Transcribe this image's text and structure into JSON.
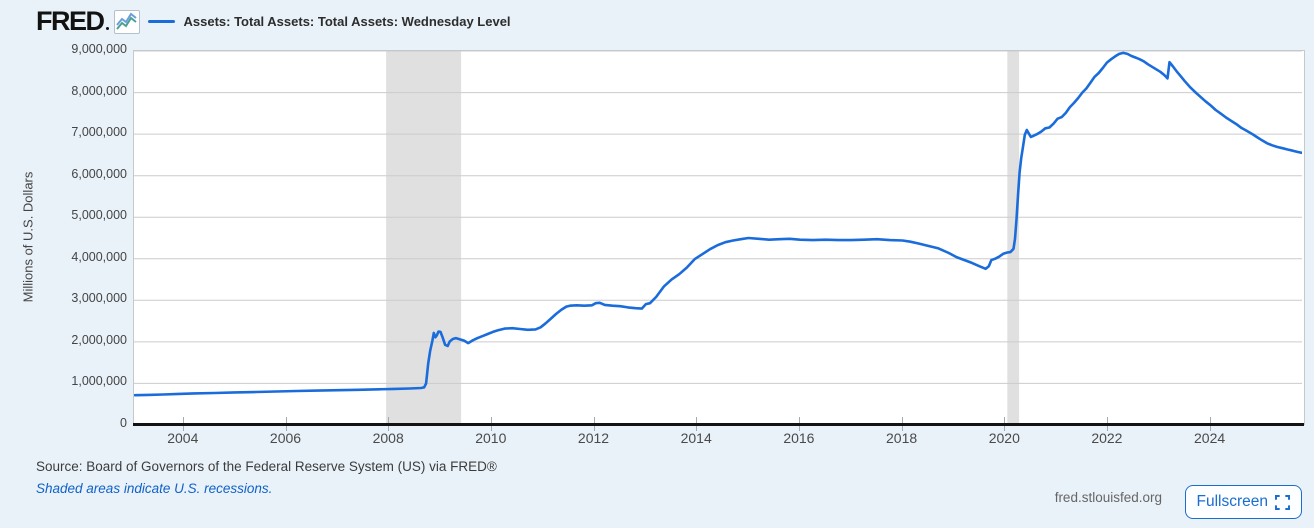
{
  "header": {
    "logo_text": "FRED"
  },
  "chart": {
    "y_axis_title": "Millions of U.S. Dollars"
  },
  "colors": {
    "series_line": "#1b6cdb",
    "recession_band": "#e0e0e0",
    "gridline": "#cccccc",
    "link_blue": "#1161c8",
    "button_blue": "#1c6dd0"
  },
  "chart_data": {
    "type": "line",
    "title": "Assets: Total Assets: Total Assets: Wednesday Level",
    "xlabel": "",
    "ylabel": "Millions of U.S. Dollars",
    "x_range": [
      2003.03,
      2025.78
    ],
    "y_range": [
      0,
      9000000
    ],
    "grid": "horizontal",
    "legend_position": "top-left",
    "x_ticks": [
      {
        "v": 2004,
        "label": "2004"
      },
      {
        "v": 2006,
        "label": "2006"
      },
      {
        "v": 2008,
        "label": "2008"
      },
      {
        "v": 2010,
        "label": "2010"
      },
      {
        "v": 2012,
        "label": "2012"
      },
      {
        "v": 2014,
        "label": "2014"
      },
      {
        "v": 2016,
        "label": "2016"
      },
      {
        "v": 2018,
        "label": "2018"
      },
      {
        "v": 2020,
        "label": "2020"
      },
      {
        "v": 2022,
        "label": "2022"
      },
      {
        "v": 2024,
        "label": "2024"
      }
    ],
    "y_ticks": [
      {
        "v": 9000000,
        "label": "9,000,000"
      },
      {
        "v": 8000000,
        "label": "8,000,000"
      },
      {
        "v": 7000000,
        "label": "7,000,000"
      },
      {
        "v": 6000000,
        "label": "6,000,000"
      },
      {
        "v": 5000000,
        "label": "5,000,000"
      },
      {
        "v": 4000000,
        "label": "4,000,000"
      },
      {
        "v": 3000000,
        "label": "3,000,000"
      },
      {
        "v": 2000000,
        "label": "2,000,000"
      },
      {
        "v": 1000000,
        "label": "1,000,000"
      },
      {
        "v": 0,
        "label": "0"
      }
    ],
    "recession_bands": [
      [
        2007.94,
        2009.4
      ],
      [
        2020.04,
        2020.27
      ]
    ],
    "series": [
      {
        "name": "Assets: Total Assets: Total Assets: Wednesday Level",
        "color": "#1b6cdb",
        "units": "Millions of U.S. Dollars",
        "points": [
          [
            2003.05,
            717000
          ],
          [
            2003.3,
            724000
          ],
          [
            2003.6,
            733000
          ],
          [
            2003.9,
            748000
          ],
          [
            2004.2,
            760000
          ],
          [
            2004.6,
            771000
          ],
          [
            2005.0,
            785000
          ],
          [
            2005.4,
            795000
          ],
          [
            2005.8,
            806000
          ],
          [
            2006.2,
            818000
          ],
          [
            2006.6,
            828000
          ],
          [
            2007.0,
            838000
          ],
          [
            2007.4,
            848000
          ],
          [
            2007.8,
            860000
          ],
          [
            2008.1,
            869000
          ],
          [
            2008.4,
            878000
          ],
          [
            2008.62,
            890000
          ],
          [
            2008.68,
            905000
          ],
          [
            2008.72,
            1000000
          ],
          [
            2008.76,
            1480000
          ],
          [
            2008.8,
            1790000
          ],
          [
            2008.84,
            2020000
          ],
          [
            2008.87,
            2214000
          ],
          [
            2008.9,
            2110000
          ],
          [
            2008.93,
            2160000
          ],
          [
            2008.96,
            2250000
          ],
          [
            2009.0,
            2240000
          ],
          [
            2009.04,
            2110000
          ],
          [
            2009.09,
            1930000
          ],
          [
            2009.14,
            1900000
          ],
          [
            2009.18,
            2010000
          ],
          [
            2009.24,
            2070000
          ],
          [
            2009.3,
            2090000
          ],
          [
            2009.38,
            2060000
          ],
          [
            2009.46,
            2030000
          ],
          [
            2009.54,
            1970000
          ],
          [
            2009.62,
            2030000
          ],
          [
            2009.72,
            2090000
          ],
          [
            2009.82,
            2140000
          ],
          [
            2009.92,
            2190000
          ],
          [
            2010.02,
            2240000
          ],
          [
            2010.12,
            2280000
          ],
          [
            2010.25,
            2320000
          ],
          [
            2010.4,
            2330000
          ],
          [
            2010.55,
            2310000
          ],
          [
            2010.7,
            2290000
          ],
          [
            2010.85,
            2300000
          ],
          [
            2010.95,
            2350000
          ],
          [
            2011.05,
            2450000
          ],
          [
            2011.15,
            2560000
          ],
          [
            2011.25,
            2670000
          ],
          [
            2011.35,
            2770000
          ],
          [
            2011.45,
            2850000
          ],
          [
            2011.52,
            2870000
          ],
          [
            2011.65,
            2880000
          ],
          [
            2011.8,
            2870000
          ],
          [
            2011.95,
            2880000
          ],
          [
            2012.02,
            2930000
          ],
          [
            2012.1,
            2940000
          ],
          [
            2012.2,
            2890000
          ],
          [
            2012.35,
            2870000
          ],
          [
            2012.5,
            2860000
          ],
          [
            2012.65,
            2830000
          ],
          [
            2012.8,
            2810000
          ],
          [
            2012.92,
            2800000
          ],
          [
            2013.0,
            2910000
          ],
          [
            2013.08,
            2930000
          ],
          [
            2013.2,
            3080000
          ],
          [
            2013.35,
            3330000
          ],
          [
            2013.5,
            3500000
          ],
          [
            2013.65,
            3630000
          ],
          [
            2013.8,
            3790000
          ],
          [
            2013.95,
            3990000
          ],
          [
            2014.1,
            4110000
          ],
          [
            2014.25,
            4230000
          ],
          [
            2014.4,
            4330000
          ],
          [
            2014.55,
            4400000
          ],
          [
            2014.7,
            4440000
          ],
          [
            2014.85,
            4470000
          ],
          [
            2015.0,
            4500000
          ],
          [
            2015.2,
            4480000
          ],
          [
            2015.4,
            4460000
          ],
          [
            2015.6,
            4470000
          ],
          [
            2015.8,
            4480000
          ],
          [
            2016.0,
            4460000
          ],
          [
            2016.25,
            4450000
          ],
          [
            2016.5,
            4460000
          ],
          [
            2016.75,
            4450000
          ],
          [
            2017.0,
            4450000
          ],
          [
            2017.25,
            4460000
          ],
          [
            2017.5,
            4470000
          ],
          [
            2017.75,
            4450000
          ],
          [
            2018.0,
            4440000
          ],
          [
            2018.15,
            4410000
          ],
          [
            2018.3,
            4370000
          ],
          [
            2018.5,
            4310000
          ],
          [
            2018.7,
            4250000
          ],
          [
            2018.9,
            4140000
          ],
          [
            2019.05,
            4040000
          ],
          [
            2019.2,
            3970000
          ],
          [
            2019.35,
            3900000
          ],
          [
            2019.5,
            3820000
          ],
          [
            2019.62,
            3760000
          ],
          [
            2019.68,
            3820000
          ],
          [
            2019.73,
            3970000
          ],
          [
            2019.8,
            4000000
          ],
          [
            2019.88,
            4050000
          ],
          [
            2019.96,
            4120000
          ],
          [
            2020.04,
            4150000
          ],
          [
            2020.1,
            4160000
          ],
          [
            2020.16,
            4240000
          ],
          [
            2020.19,
            4480000
          ],
          [
            2020.22,
            4950000
          ],
          [
            2020.25,
            5560000
          ],
          [
            2020.28,
            6080000
          ],
          [
            2020.31,
            6420000
          ],
          [
            2020.34,
            6650000
          ],
          [
            2020.38,
            6980000
          ],
          [
            2020.42,
            7100000
          ],
          [
            2020.46,
            7010000
          ],
          [
            2020.5,
            6930000
          ],
          [
            2020.55,
            6960000
          ],
          [
            2020.62,
            7000000
          ],
          [
            2020.7,
            7060000
          ],
          [
            2020.78,
            7140000
          ],
          [
            2020.86,
            7160000
          ],
          [
            2020.94,
            7250000
          ],
          [
            2021.02,
            7370000
          ],
          [
            2021.1,
            7410000
          ],
          [
            2021.18,
            7510000
          ],
          [
            2021.26,
            7650000
          ],
          [
            2021.34,
            7750000
          ],
          [
            2021.42,
            7870000
          ],
          [
            2021.5,
            8000000
          ],
          [
            2021.58,
            8100000
          ],
          [
            2021.66,
            8240000
          ],
          [
            2021.74,
            8380000
          ],
          [
            2021.82,
            8470000
          ],
          [
            2021.9,
            8590000
          ],
          [
            2021.98,
            8720000
          ],
          [
            2022.06,
            8800000
          ],
          [
            2022.14,
            8870000
          ],
          [
            2022.22,
            8930000
          ],
          [
            2022.3,
            8954000
          ],
          [
            2022.38,
            8930000
          ],
          [
            2022.46,
            8880000
          ],
          [
            2022.54,
            8840000
          ],
          [
            2022.62,
            8800000
          ],
          [
            2022.7,
            8750000
          ],
          [
            2022.78,
            8680000
          ],
          [
            2022.86,
            8620000
          ],
          [
            2022.94,
            8560000
          ],
          [
            2023.02,
            8500000
          ],
          [
            2023.1,
            8420000
          ],
          [
            2023.16,
            8340000
          ],
          [
            2023.2,
            8730000
          ],
          [
            2023.26,
            8640000
          ],
          [
            2023.34,
            8510000
          ],
          [
            2023.42,
            8390000
          ],
          [
            2023.5,
            8270000
          ],
          [
            2023.6,
            8130000
          ],
          [
            2023.7,
            8010000
          ],
          [
            2023.8,
            7900000
          ],
          [
            2023.9,
            7790000
          ],
          [
            2024.0,
            7690000
          ],
          [
            2024.1,
            7580000
          ],
          [
            2024.2,
            7490000
          ],
          [
            2024.3,
            7400000
          ],
          [
            2024.4,
            7320000
          ],
          [
            2024.5,
            7240000
          ],
          [
            2024.6,
            7150000
          ],
          [
            2024.7,
            7080000
          ],
          [
            2024.8,
            7010000
          ],
          [
            2024.9,
            6930000
          ],
          [
            2025.0,
            6850000
          ],
          [
            2025.1,
            6780000
          ],
          [
            2025.2,
            6730000
          ],
          [
            2025.3,
            6690000
          ],
          [
            2025.4,
            6660000
          ],
          [
            2025.5,
            6630000
          ],
          [
            2025.6,
            6600000
          ],
          [
            2025.7,
            6570000
          ],
          [
            2025.78,
            6550000
          ]
        ]
      }
    ]
  },
  "footer": {
    "source_text": "Source: Board of Governors of the Federal Reserve System (US) via FRED®",
    "recession_note": "Shaded areas indicate U.S. recessions.",
    "site_url": "fred.stlouisfed.org",
    "fullscreen_label": "Fullscreen"
  }
}
